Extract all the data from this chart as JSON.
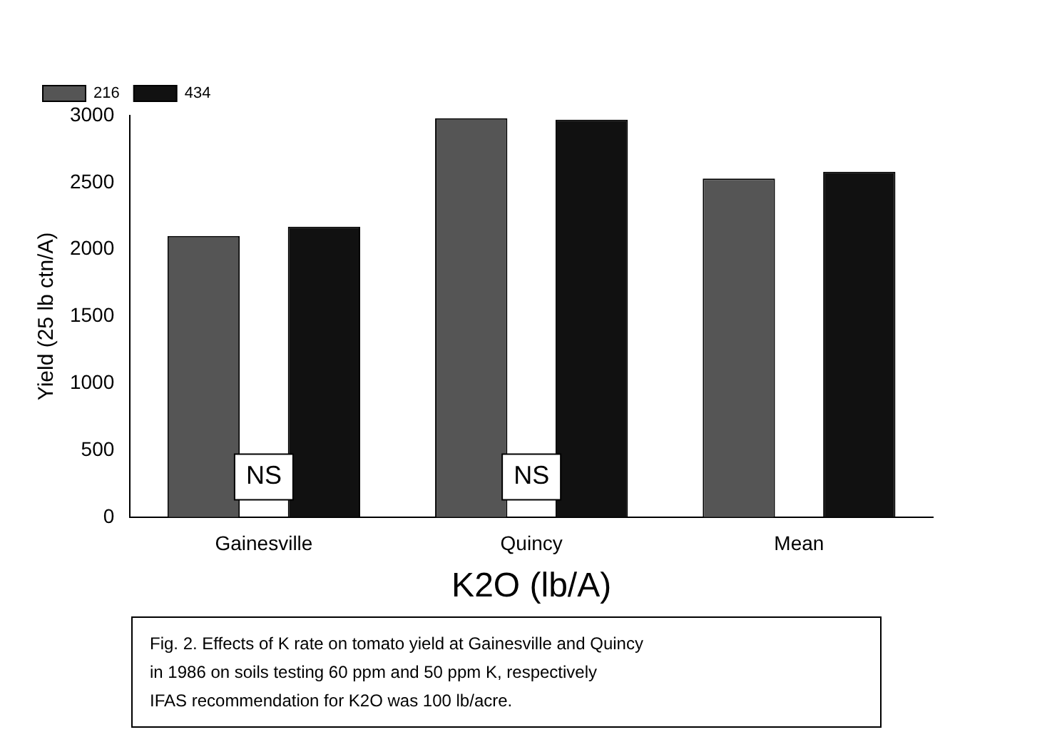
{
  "chart_data": {
    "type": "bar",
    "xlabel": "K2O (lb/A)",
    "ylabel": "Yield (25 lb ctn/A)",
    "categories": [
      "Gainesville",
      "Quincy",
      "Mean"
    ],
    "series": [
      {
        "name": "216",
        "color": "#555555",
        "values": [
          2100,
          2980,
          2530
        ]
      },
      {
        "name": "434",
        "color": "#111111",
        "values": [
          2170,
          2970,
          2580
        ]
      }
    ],
    "ylim": [
      0,
      3000
    ],
    "yticks": [
      0,
      500,
      1000,
      1500,
      2000,
      2500,
      3000
    ],
    "grid": false,
    "legend": "top left",
    "annotations": [
      {
        "text": "NS",
        "x": "Gainesville",
        "y": 300
      },
      {
        "text": "NS",
        "x": "Quincy",
        "y": 300
      },
      "Fig. 2.   Effects of K rate on tomato yield at Gainesville and Quincy",
      "in 1986 on soils  testing 60 ppm and 50 ppm K, respectively",
      "IFAS recommendation for K2O was 100 lb/acre."
    ]
  }
}
